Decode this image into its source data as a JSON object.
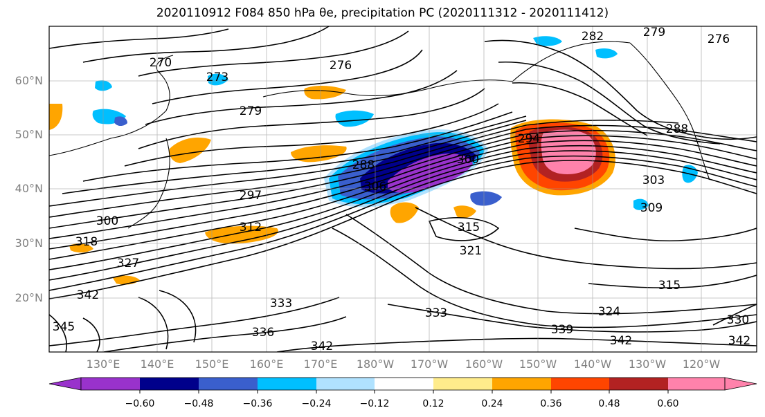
{
  "title": "2020110912 F084 850 hPa θe, precipitation PC (2020111312 - 2020111412)",
  "map": {
    "lat_labels": [
      "60°N",
      "50°N",
      "40°N",
      "30°N",
      "20°N"
    ],
    "lon_labels": [
      "130°E",
      "140°E",
      "150°E",
      "160°E",
      "170°E",
      "180°W",
      "170°W",
      "160°W",
      "150°W",
      "140°W",
      "130°W",
      "120°W"
    ],
    "contour_labels": [
      "270",
      "273",
      "279",
      "276",
      "282",
      "279",
      "276",
      "288",
      "288",
      "294",
      "300",
      "306",
      "297",
      "303",
      "309",
      "312",
      "315",
      "321",
      "315",
      "300",
      "318",
      "327",
      "333",
      "333",
      "336",
      "339",
      "342",
      "342",
      "345",
      "342",
      "324",
      "330",
      "342"
    ]
  },
  "colorbar": {
    "ticks": [
      "−0.60",
      "−0.48",
      "−0.36",
      "−0.24",
      "−0.12",
      "0.12",
      "0.24",
      "0.36",
      "0.48",
      "0.60"
    ],
    "colors": [
      "#9932cc",
      "#00008b",
      "#3a5fcd",
      "#00bfff",
      "#b0e2ff",
      "#ffffff",
      "#ffec8b",
      "#ffa500",
      "#ff4500",
      "#b22222",
      "#ff82ab"
    ]
  }
}
